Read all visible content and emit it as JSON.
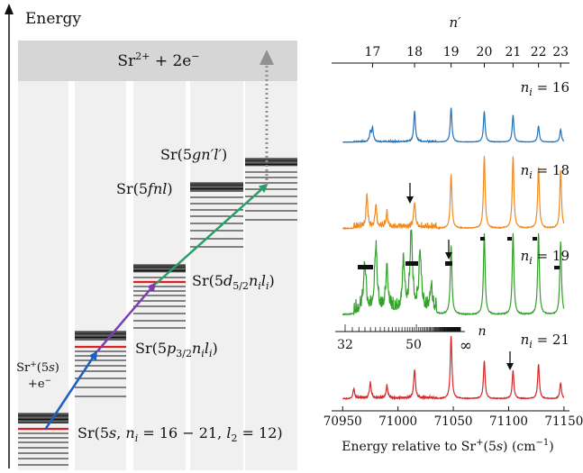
{
  "left": {
    "axis_label": "Energy",
    "continuum": {
      "ion": "Sr",
      "charge": "2+",
      "rest": " + 2e",
      "rest_sup": "−"
    },
    "core_label": {
      "line1_a": "Sr",
      "line1_sup": "+",
      "line1_b": "(5",
      "line1_it": "s",
      "line1_c": ")",
      "line2_a": "+e",
      "line2_sup": "−"
    },
    "states": {
      "s0": {
        "a": "Sr(5",
        "b": "s",
        "c": ", ",
        "d": "n",
        "e": "i",
        "f": " = 16 − 21, ",
        "g": "l",
        "h": "2",
        "i": " = 12)"
      },
      "s1": {
        "a": "Sr(5",
        "b": "p",
        "c": "3/2",
        "d": "n",
        "e": "i",
        "f": "l",
        "g": "i",
        "h": ")"
      },
      "s2": {
        "a": "Sr(5",
        "b": "d",
        "c": "5/2",
        "d": "n",
        "e": "i",
        "f": "l",
        "g": "i",
        "h": ")"
      },
      "s3": {
        "a": "Sr(5",
        "b": "fnl",
        "c": ")"
      },
      "s4": {
        "a": "Sr(5",
        "b": "gn′l′",
        "c": ")"
      }
    },
    "colors": {
      "column_bg": "#f0f0f0",
      "continuum_bg": "#d6d6d6",
      "level": "#111111",
      "level_red": "#e02020",
      "arrow1": "#1f5fbf",
      "arrow2": "#7a3fb0",
      "arrow3": "#2a9d6a",
      "arrow4": "#909090"
    }
  },
  "right": {
    "top_axis": {
      "label": "n′",
      "ticks": [
        "17",
        "18",
        "19",
        "20",
        "21",
        "22",
        "23"
      ]
    },
    "bottom_axis": {
      "ticks": [
        "70950",
        "71000",
        "71050",
        "71100",
        "71150"
      ],
      "label_a": "Energy relative to Sr",
      "label_sup": "+",
      "label_b": "(5",
      "label_it": "s",
      "label_c": ") (cm",
      "label_sup2": "−1",
      "label_d": ")"
    },
    "n_scale": {
      "label": "n",
      "ticks": [
        "32",
        "50",
        "∞"
      ]
    },
    "panel_labels": [
      {
        "n": "n",
        "i": "i",
        "val": " = 16"
      },
      {
        "n": "n",
        "i": "i",
        "val": " = 18"
      },
      {
        "n": "n",
        "i": "i",
        "val": " = 19"
      },
      {
        "n": "n",
        "i": "i",
        "val": " = 21"
      }
    ],
    "colors": [
      "#2472b5",
      "#f08a1e",
      "#33a02c",
      "#d62728"
    ]
  },
  "chart_data": {
    "type": "line",
    "title": "",
    "xlabel": "Energy relative to Sr+(5s) (cm−1)",
    "ylabel": "",
    "xlim": [
      70940,
      71155
    ],
    "top_axis_n_prime": {
      "17": 70977,
      "18": 71015,
      "19": 71048,
      "20": 71078,
      "21": 71104,
      "22": 71127,
      "23": 71147
    },
    "series": [
      {
        "name": "n_i = 16",
        "peaks": [
          [
            70975,
            0.25
          ],
          [
            70977,
            0.35
          ],
          [
            71015,
            0.85
          ],
          [
            71048,
            0.95
          ],
          [
            71078,
            0.85
          ],
          [
            71104,
            0.75
          ],
          [
            71127,
            0.45
          ],
          [
            71147,
            0.35
          ]
        ]
      },
      {
        "name": "n_i = 18",
        "peaks": [
          [
            70972,
            0.45
          ],
          [
            70980,
            0.3
          ],
          [
            70990,
            0.2
          ],
          [
            71015,
            0.35
          ],
          [
            71048,
            0.75
          ],
          [
            71078,
            1.0
          ],
          [
            71104,
            1.0
          ],
          [
            71127,
            0.85
          ],
          [
            71147,
            0.8
          ]
        ]
      },
      {
        "name": "n_i = 19",
        "peaks": [
          [
            70970,
            0.6
          ],
          [
            70980,
            0.8
          ],
          [
            70990,
            0.5
          ],
          [
            71005,
            0.6
          ],
          [
            71012,
            1.0
          ],
          [
            71020,
            0.7
          ],
          [
            71030,
            0.3
          ],
          [
            71048,
            0.85
          ],
          [
            71078,
            1.0
          ],
          [
            71104,
            1.0
          ],
          [
            71127,
            1.0
          ],
          [
            71147,
            0.9
          ]
        ]
      },
      {
        "name": "n_i = 21",
        "peaks": [
          [
            70960,
            0.15
          ],
          [
            70975,
            0.25
          ],
          [
            70990,
            0.2
          ],
          [
            71015,
            0.45
          ],
          [
            71048,
            1.0
          ],
          [
            71078,
            0.6
          ],
          [
            71104,
            0.45
          ],
          [
            71127,
            0.55
          ],
          [
            71147,
            0.25
          ]
        ]
      }
    ]
  }
}
